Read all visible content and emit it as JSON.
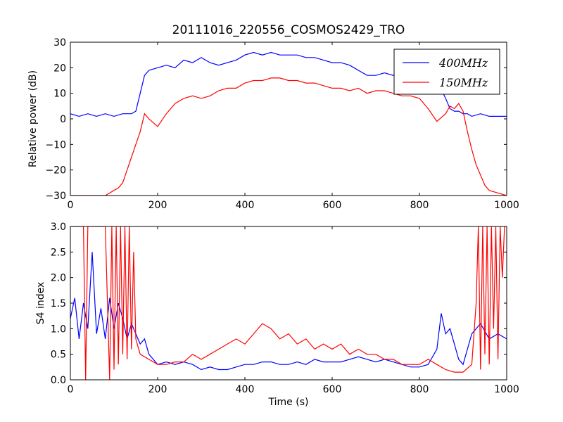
{
  "figure": {
    "title": "20111016_220556_COSMOS2429_TRO"
  },
  "colors": {
    "series_400": "#0000ff",
    "series_150": "#ff0000",
    "axes": "#000000"
  },
  "chart_data": [
    {
      "type": "line",
      "id": "power",
      "title": "20111016_220556_COSMOS2429_TRO",
      "xlabel": "",
      "ylabel": "Relative power (dB)",
      "xlim": [
        0,
        1000
      ],
      "ylim": [
        -30,
        30
      ],
      "xticks": [
        "0",
        "200",
        "400",
        "600",
        "800",
        "1000"
      ],
      "yticks": [
        "−30",
        "−20",
        "−10",
        "0",
        "10",
        "20",
        "30"
      ],
      "grid": false,
      "legend": "top-right",
      "series": [
        {
          "name": "400MHz",
          "color": "#0000ff",
          "x": [
            0,
            20,
            40,
            60,
            80,
            100,
            120,
            140,
            150,
            160,
            170,
            180,
            200,
            220,
            240,
            260,
            280,
            300,
            320,
            340,
            360,
            380,
            400,
            420,
            440,
            460,
            480,
            500,
            520,
            540,
            560,
            580,
            600,
            620,
            640,
            660,
            680,
            700,
            720,
            740,
            760,
            780,
            800,
            820,
            840,
            860,
            870,
            880,
            890,
            900,
            910,
            920,
            940,
            960,
            980,
            1000
          ],
          "y": [
            2,
            1,
            2,
            1,
            2,
            1,
            2,
            2,
            3,
            10,
            17,
            19,
            20,
            21,
            20,
            23,
            22,
            24,
            22,
            21,
            22,
            23,
            25,
            26,
            25,
            26,
            25,
            25,
            25,
            24,
            24,
            23,
            22,
            22,
            21,
            19,
            17,
            17,
            18,
            17,
            18,
            19,
            17,
            16,
            15,
            8,
            4,
            3,
            3,
            2,
            2,
            1,
            2,
            1,
            1,
            1
          ]
        },
        {
          "name": "150MHz",
          "color": "#ff0000",
          "x": [
            0,
            50,
            80,
            90,
            100,
            110,
            120,
            130,
            140,
            150,
            160,
            170,
            180,
            200,
            220,
            240,
            260,
            280,
            300,
            320,
            340,
            360,
            380,
            400,
            420,
            440,
            460,
            480,
            500,
            520,
            540,
            560,
            580,
            600,
            620,
            640,
            660,
            680,
            700,
            720,
            740,
            760,
            780,
            800,
            820,
            840,
            860,
            870,
            880,
            890,
            900,
            910,
            920,
            930,
            940,
            950,
            960,
            980,
            1000
          ],
          "y": [
            -30,
            -30,
            -30,
            -29,
            -28,
            -27,
            -25,
            -20,
            -15,
            -10,
            -5,
            2,
            0,
            -3,
            2,
            6,
            8,
            9,
            8,
            9,
            11,
            12,
            12,
            14,
            15,
            15,
            16,
            16,
            15,
            15,
            14,
            14,
            13,
            12,
            12,
            11,
            12,
            10,
            11,
            11,
            10,
            9,
            9,
            8,
            4,
            -1,
            2,
            5,
            4,
            6,
            3,
            -5,
            -12,
            -18,
            -22,
            -26,
            -28,
            -29,
            -30
          ]
        }
      ]
    },
    {
      "type": "line",
      "id": "s4",
      "title": "",
      "xlabel": "Time (s)",
      "ylabel": "S4 index",
      "xlim": [
        0,
        1000
      ],
      "ylim": [
        0,
        3
      ],
      "xticks": [
        "0",
        "200",
        "400",
        "600",
        "800",
        "1000"
      ],
      "yticks": [
        "0.0",
        "0.5",
        "1.0",
        "1.5",
        "2.0",
        "2.5",
        "3.0"
      ],
      "grid": false,
      "series": [
        {
          "name": "400MHz",
          "color": "#0000ff",
          "x": [
            0,
            10,
            20,
            30,
            40,
            50,
            60,
            70,
            80,
            90,
            100,
            110,
            120,
            130,
            140,
            150,
            160,
            170,
            180,
            200,
            220,
            240,
            260,
            280,
            300,
            320,
            340,
            360,
            380,
            400,
            420,
            440,
            460,
            480,
            500,
            520,
            540,
            560,
            580,
            600,
            620,
            640,
            660,
            680,
            700,
            720,
            740,
            760,
            780,
            800,
            820,
            840,
            850,
            860,
            870,
            880,
            890,
            900,
            920,
            940,
            960,
            980,
            1000
          ],
          "y": [
            1.2,
            1.6,
            0.8,
            1.5,
            1.0,
            2.5,
            0.9,
            1.4,
            0.8,
            1.6,
            1.0,
            1.5,
            1.2,
            0.8,
            1.1,
            0.9,
            0.7,
            0.8,
            0.5,
            0.3,
            0.35,
            0.3,
            0.35,
            0.3,
            0.2,
            0.25,
            0.2,
            0.2,
            0.25,
            0.3,
            0.3,
            0.35,
            0.35,
            0.3,
            0.3,
            0.35,
            0.3,
            0.4,
            0.35,
            0.35,
            0.35,
            0.4,
            0.45,
            0.4,
            0.35,
            0.4,
            0.35,
            0.3,
            0.25,
            0.25,
            0.3,
            0.6,
            1.3,
            0.9,
            1.0,
            0.7,
            0.4,
            0.3,
            0.9,
            1.1,
            0.8,
            0.9,
            0.8
          ]
        },
        {
          "name": "150MHz",
          "color": "#ff0000",
          "x": [
            0,
            20,
            30,
            35,
            40,
            60,
            80,
            90,
            95,
            100,
            105,
            110,
            115,
            120,
            125,
            130,
            135,
            140,
            145,
            150,
            160,
            180,
            200,
            220,
            240,
            260,
            280,
            300,
            320,
            340,
            360,
            380,
            400,
            420,
            440,
            460,
            480,
            500,
            520,
            540,
            560,
            580,
            600,
            620,
            640,
            660,
            680,
            700,
            720,
            740,
            760,
            780,
            800,
            820,
            840,
            860,
            880,
            900,
            920,
            930,
            935,
            940,
            945,
            950,
            955,
            960,
            965,
            970,
            975,
            980,
            985,
            990,
            995,
            1000
          ],
          "y": [
            3.0,
            3.0,
            3.0,
            0.0,
            3.0,
            3.0,
            3.0,
            0.0,
            3.0,
            0.2,
            3.0,
            0.3,
            3.0,
            0.5,
            3.0,
            0.4,
            3.0,
            0.6,
            2.5,
            0.8,
            0.5,
            0.4,
            0.3,
            0.3,
            0.35,
            0.35,
            0.5,
            0.4,
            0.5,
            0.6,
            0.7,
            0.8,
            0.7,
            0.9,
            1.1,
            1.0,
            0.8,
            0.9,
            0.7,
            0.8,
            0.6,
            0.7,
            0.6,
            0.7,
            0.5,
            0.6,
            0.5,
            0.5,
            0.4,
            0.4,
            0.3,
            0.3,
            0.3,
            0.4,
            0.3,
            0.2,
            0.15,
            0.15,
            0.3,
            1.5,
            3.0,
            0.2,
            3.0,
            0.5,
            3.0,
            0.3,
            3.0,
            1.0,
            3.0,
            0.4,
            3.0,
            2.0,
            3.0,
            3.0
          ]
        }
      ]
    }
  ]
}
